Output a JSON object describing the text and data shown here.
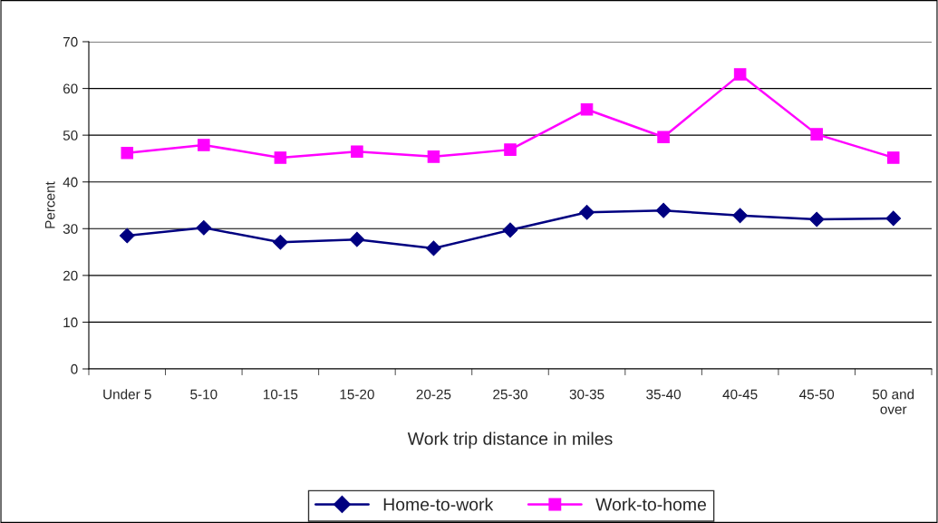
{
  "chart_data": {
    "type": "line",
    "xlabel": "Work trip distance in miles",
    "ylabel": "Percent",
    "categories": [
      "Under 5",
      "5-10",
      "10-15",
      "15-20",
      "20-25",
      "25-30",
      "30-35",
      "35-40",
      "40-45",
      "45-50",
      "50 and over"
    ],
    "series": [
      {
        "name": "Home-to-work",
        "color": "#000080",
        "marker": "diamond",
        "values": [
          28.5,
          30.2,
          27.1,
          27.7,
          25.8,
          29.7,
          33.5,
          33.9,
          32.8,
          32.0,
          32.2
        ]
      },
      {
        "name": "Work-to-home",
        "color": "#ff00ff",
        "marker": "square",
        "values": [
          46.2,
          47.9,
          45.2,
          46.5,
          45.4,
          46.9,
          55.5,
          49.6,
          63.0,
          50.2,
          45.2
        ]
      }
    ],
    "ylim": [
      0,
      70
    ],
    "yticks": [
      0,
      10,
      20,
      30,
      40,
      50,
      60,
      70
    ],
    "grid": "y",
    "legend": "bottom",
    "line_style": "solid"
  }
}
